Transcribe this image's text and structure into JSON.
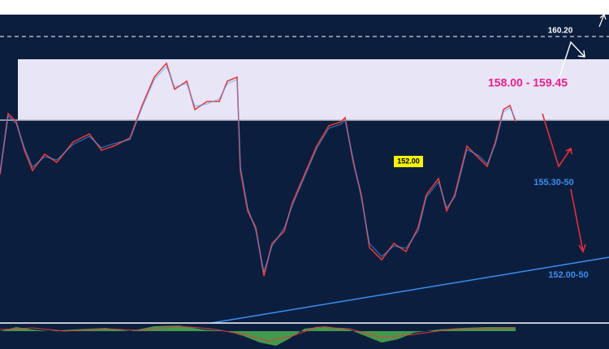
{
  "annotations": {
    "resistance_top": "160.20",
    "zone": "158.00 - 159.45",
    "current": "152.00",
    "target_1": "155.30-50",
    "target_2": "152.00-50"
  }
}
